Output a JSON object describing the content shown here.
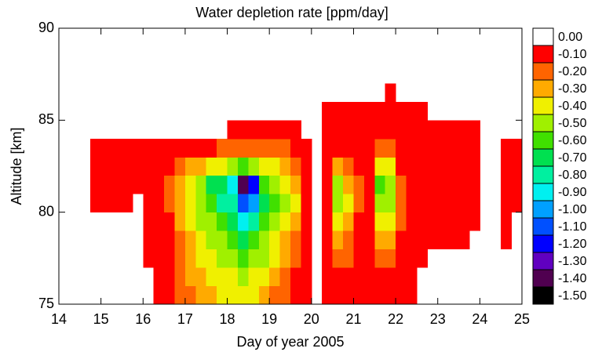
{
  "chart_data": {
    "type": "heatmap",
    "title": "Water depletion rate [ppm/day]",
    "x_label": "Day of year 2005",
    "y_label": "Altitude [km]",
    "xlim": [
      14,
      25
    ],
    "xticks": [
      14,
      15,
      16,
      17,
      18,
      19,
      20,
      21,
      22,
      23,
      24,
      25
    ],
    "ylim": [
      75,
      90
    ],
    "yticks": [
      75,
      80,
      85,
      90
    ],
    "x_bins": [
      14.75,
      15,
      15.25,
      15.5,
      15.75,
      16,
      16.25,
      16.5,
      16.75,
      17,
      17.25,
      17.5,
      17.75,
      18,
      18.25,
      18.5,
      18.75,
      19,
      19.25,
      19.5,
      19.75,
      20,
      20.25,
      20.5,
      20.75,
      21,
      21.25,
      21.5,
      21.75,
      22,
      22.25,
      22.5,
      22.75,
      23,
      23.25,
      23.5,
      23.75,
      24,
      24.25,
      24.5,
      24.75,
      25
    ],
    "y_bins": [
      75,
      76,
      77,
      78,
      79,
      80,
      81,
      82,
      83,
      84,
      85,
      86,
      87
    ],
    "z": [
      [
        null,
        null,
        null,
        null,
        null,
        null,
        -0.1,
        -0.1,
        -0.2,
        -0.2,
        -0.3,
        -0.3,
        -0.4,
        -0.4,
        -0.4,
        -0.4,
        -0.3,
        -0.2,
        -0.2,
        -0.1,
        -0.1,
        null,
        -0.1,
        -0.1,
        -0.1,
        -0.1,
        -0.1,
        -0.1,
        -0.1,
        -0.1,
        -0.1,
        null,
        null,
        null,
        null,
        null,
        null,
        null,
        null,
        null,
        null
      ],
      [
        null,
        null,
        null,
        null,
        null,
        null,
        -0.1,
        -0.1,
        -0.2,
        -0.3,
        -0.3,
        -0.4,
        -0.4,
        -0.4,
        -0.5,
        -0.4,
        -0.4,
        -0.3,
        -0.2,
        -0.1,
        -0.1,
        null,
        -0.1,
        -0.1,
        -0.1,
        -0.1,
        -0.1,
        -0.1,
        -0.1,
        -0.1,
        -0.1,
        null,
        null,
        null,
        null,
        null,
        null,
        null,
        null,
        null,
        null
      ],
      [
        null,
        null,
        null,
        null,
        null,
        -0.1,
        -0.1,
        -0.1,
        -0.2,
        -0.3,
        -0.4,
        -0.4,
        -0.5,
        -0.5,
        -0.6,
        -0.5,
        -0.5,
        -0.4,
        -0.3,
        -0.2,
        -0.1,
        null,
        -0.1,
        -0.2,
        -0.2,
        -0.1,
        -0.1,
        -0.2,
        -0.2,
        -0.1,
        -0.1,
        -0.1,
        null,
        null,
        null,
        null,
        null,
        null,
        null,
        null,
        null
      ],
      [
        null,
        null,
        null,
        null,
        null,
        -0.1,
        -0.1,
        -0.1,
        -0.2,
        -0.3,
        -0.4,
        -0.5,
        -0.5,
        -0.6,
        -0.7,
        -0.6,
        -0.5,
        -0.4,
        -0.3,
        -0.2,
        -0.1,
        null,
        -0.1,
        -0.3,
        -0.2,
        -0.1,
        -0.1,
        -0.3,
        -0.3,
        -0.1,
        -0.1,
        -0.1,
        -0.1,
        -0.1,
        -0.1,
        -0.1,
        null,
        null,
        null,
        -0.1,
        null
      ],
      [
        null,
        null,
        null,
        null,
        null,
        -0.1,
        -0.1,
        -0.1,
        -0.3,
        -0.4,
        -0.5,
        -0.5,
        -0.6,
        -0.7,
        -0.9,
        -0.8,
        -0.6,
        -0.5,
        -0.4,
        -0.3,
        -0.1,
        null,
        -0.1,
        -0.4,
        -0.3,
        -0.1,
        -0.1,
        -0.4,
        -0.4,
        -0.2,
        -0.1,
        -0.1,
        -0.1,
        -0.1,
        -0.1,
        -0.1,
        -0.1,
        null,
        null,
        -0.1,
        null
      ],
      [
        -0.1,
        -0.1,
        -0.1,
        -0.1,
        null,
        -0.1,
        -0.1,
        -0.2,
        -0.3,
        -0.4,
        -0.5,
        -0.6,
        -0.8,
        -0.8,
        -1.1,
        -1.0,
        -0.7,
        -0.6,
        -0.5,
        -0.4,
        -0.1,
        null,
        -0.1,
        -0.5,
        -0.4,
        -0.2,
        -0.1,
        -0.5,
        -0.5,
        -0.2,
        -0.1,
        -0.1,
        -0.1,
        -0.1,
        -0.1,
        -0.1,
        -0.1,
        null,
        null,
        -0.1,
        -0.1
      ],
      [
        -0.1,
        -0.1,
        -0.1,
        -0.1,
        -0.1,
        -0.1,
        -0.1,
        -0.2,
        -0.3,
        -0.4,
        -0.5,
        -0.7,
        -0.7,
        -0.9,
        -1.4,
        -1.2,
        -0.6,
        -0.5,
        -0.4,
        -0.3,
        -0.1,
        null,
        -0.1,
        -0.5,
        -0.3,
        -0.2,
        -0.1,
        -0.6,
        -0.5,
        -0.2,
        -0.1,
        -0.1,
        -0.1,
        -0.1,
        -0.1,
        -0.1,
        -0.1,
        null,
        null,
        -0.1,
        -0.1
      ],
      [
        -0.1,
        -0.1,
        -0.1,
        -0.1,
        -0.1,
        -0.1,
        -0.1,
        -0.1,
        -0.2,
        -0.3,
        -0.3,
        -0.4,
        -0.4,
        -0.5,
        -0.6,
        -0.5,
        -0.4,
        -0.4,
        -0.3,
        -0.2,
        -0.1,
        null,
        -0.1,
        -0.3,
        -0.2,
        -0.1,
        -0.1,
        -0.4,
        -0.4,
        -0.1,
        -0.1,
        -0.1,
        -0.1,
        -0.1,
        -0.1,
        -0.1,
        -0.1,
        null,
        null,
        -0.1,
        -0.1
      ],
      [
        -0.1,
        -0.1,
        -0.1,
        -0.1,
        -0.1,
        -0.1,
        -0.1,
        -0.1,
        -0.1,
        -0.1,
        -0.1,
        -0.1,
        -0.2,
        -0.2,
        -0.2,
        -0.2,
        -0.2,
        -0.2,
        -0.2,
        -0.1,
        -0.1,
        null,
        -0.1,
        -0.1,
        -0.1,
        -0.1,
        -0.1,
        -0.2,
        -0.2,
        -0.1,
        -0.1,
        -0.1,
        -0.1,
        -0.1,
        -0.1,
        -0.1,
        -0.1,
        null,
        null,
        -0.1,
        -0.1
      ],
      [
        null,
        null,
        null,
        null,
        null,
        null,
        null,
        null,
        null,
        null,
        null,
        null,
        null,
        -0.1,
        -0.1,
        -0.1,
        -0.1,
        -0.1,
        -0.1,
        -0.1,
        null,
        null,
        -0.1,
        -0.1,
        -0.1,
        -0.1,
        -0.1,
        -0.1,
        -0.1,
        -0.1,
        -0.1,
        -0.1,
        -0.1,
        -0.1,
        -0.1,
        -0.1,
        -0.1,
        null,
        null,
        null,
        null
      ],
      [
        null,
        null,
        null,
        null,
        null,
        null,
        null,
        null,
        null,
        null,
        null,
        null,
        null,
        null,
        null,
        null,
        null,
        null,
        null,
        null,
        null,
        null,
        -0.1,
        -0.1,
        -0.1,
        -0.1,
        -0.1,
        -0.1,
        -0.1,
        -0.1,
        -0.1,
        -0.1,
        null,
        null,
        null,
        null,
        null,
        null,
        null,
        null,
        null
      ],
      [
        null,
        null,
        null,
        null,
        null,
        null,
        null,
        null,
        null,
        null,
        null,
        null,
        null,
        null,
        null,
        null,
        null,
        null,
        null,
        null,
        null,
        null,
        null,
        null,
        null,
        null,
        null,
        null,
        -0.1,
        null,
        null,
        null,
        null,
        null,
        null,
        null,
        null,
        null,
        null,
        null,
        null
      ]
    ],
    "colorbar": {
      "levels": [
        {
          "value": 0,
          "label": "0.00"
        },
        {
          "value": -0.1,
          "label": "-0.10"
        },
        {
          "value": -0.2,
          "label": "-0.20"
        },
        {
          "value": -0.3,
          "label": "-0.30"
        },
        {
          "value": -0.4,
          "label": "-0.40"
        },
        {
          "value": -0.5,
          "label": "-0.50"
        },
        {
          "value": -0.6,
          "label": "-0.60"
        },
        {
          "value": -0.7,
          "label": "-0.70"
        },
        {
          "value": -0.8,
          "label": "-0.80"
        },
        {
          "value": -0.9,
          "label": "-0.90"
        },
        {
          "value": -1.0,
          "label": "-1.00"
        },
        {
          "value": -1.1,
          "label": "-1.10"
        },
        {
          "value": -1.2,
          "label": "-1.20"
        },
        {
          "value": -1.3,
          "label": "-1.30"
        },
        {
          "value": -1.4,
          "label": "-1.40"
        },
        {
          "value": -1.5,
          "label": "-1.50"
        }
      ],
      "colors": [
        "#ffffff",
        "#ff0000",
        "#ff6400",
        "#ffaa00",
        "#f0f000",
        "#a0f000",
        "#40e000",
        "#00e050",
        "#00f0a0",
        "#00f0f0",
        "#00a0ff",
        "#0050ff",
        "#0000ff",
        "#6000c0",
        "#500050",
        "#000000"
      ]
    }
  }
}
